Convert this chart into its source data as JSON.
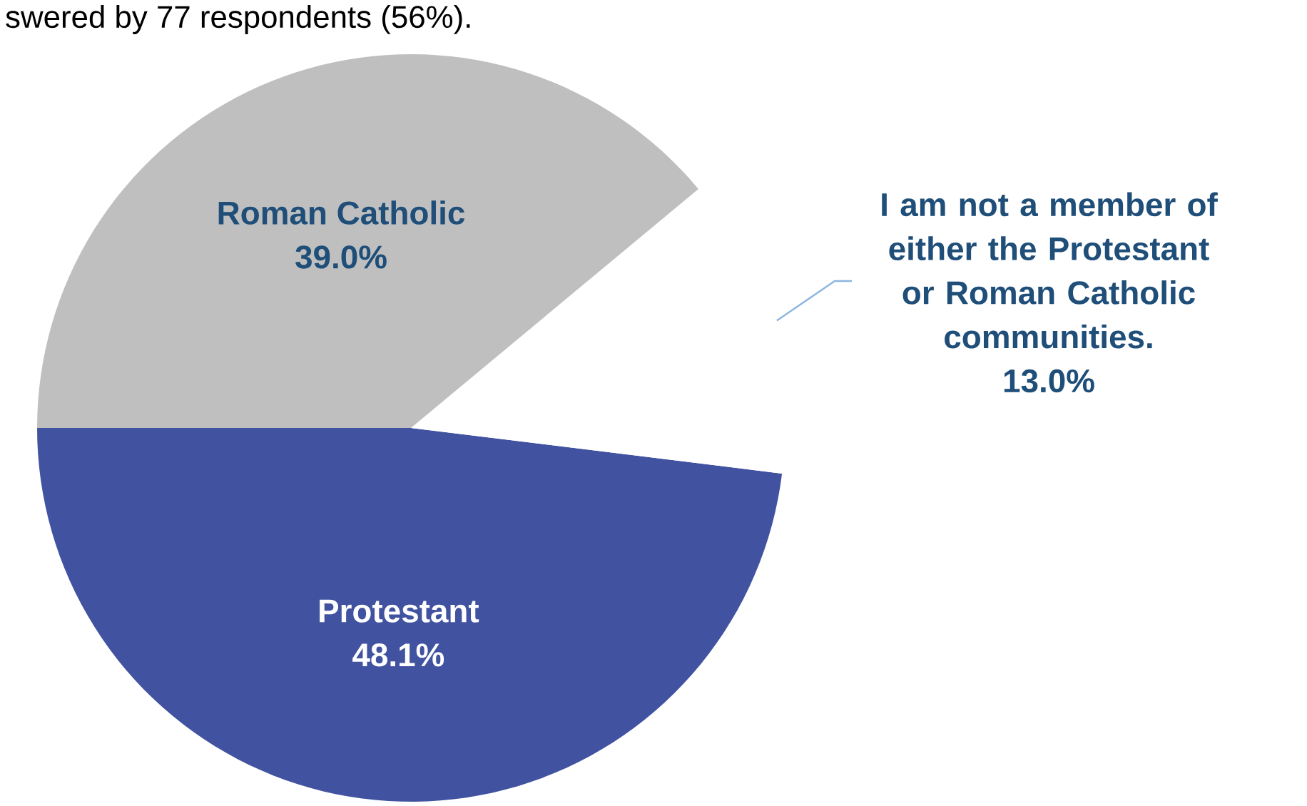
{
  "chart_data": {
    "type": "pie",
    "subtitle": "swered by 77 respondents (56%).",
    "categories": [
      "Protestant",
      "I am not a member of either the Protestant or Roman Catholic communities.",
      "Roman Catholic"
    ],
    "values": [
      48.1,
      13.0,
      39.0
    ],
    "colors": [
      "#4152a0",
      "#ffffff",
      "#bfbfbf"
    ],
    "value_labels": [
      "48.1%",
      "13.0%",
      "39.0%"
    ]
  }
}
